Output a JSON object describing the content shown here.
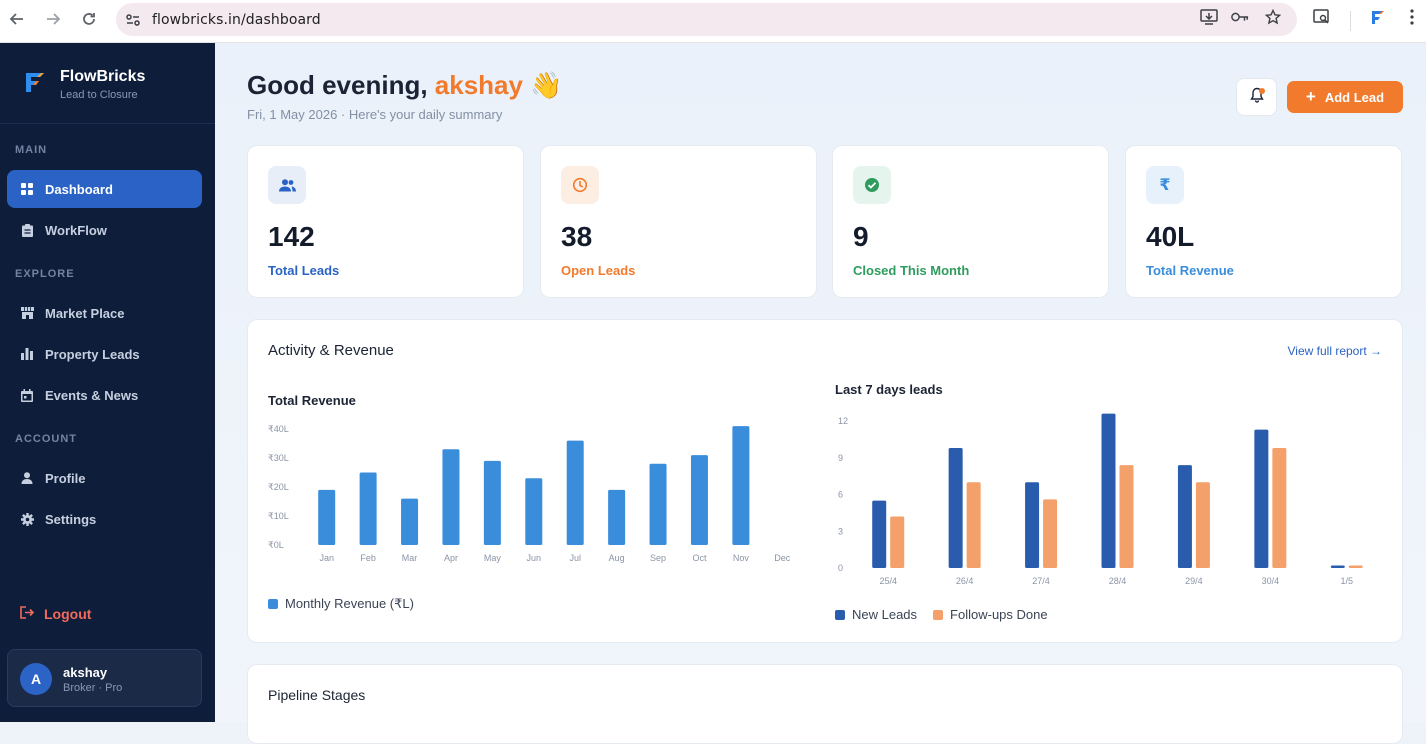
{
  "browser": {
    "url": "flowbricks.in/dashboard"
  },
  "sidebar": {
    "brand_name": "FlowBricks",
    "brand_tagline": "Lead to Closure",
    "sections": {
      "main": "MAIN",
      "explore": "EXPLORE",
      "account": "ACCOUNT"
    },
    "items": {
      "dashboard": "Dashboard",
      "workflow": "WorkFlow",
      "marketplace": "Market Place",
      "property_leads": "Property Leads",
      "events_news": "Events & News",
      "profile": "Profile",
      "settings": "Settings"
    },
    "logout": "Logout",
    "user": {
      "initial": "A",
      "name": "akshay",
      "role": "Broker · Pro"
    }
  },
  "header": {
    "greeting": "Good evening, ",
    "user_name": "akshay",
    "wave": "👋",
    "subtitle": "Fri, 1 May 2026 · Here's your daily summary",
    "add_lead": "Add Lead"
  },
  "stats": [
    {
      "value": "142",
      "label": "Total Leads",
      "color": "#2a63c5",
      "bg": "#e8eef8",
      "icon": "users-icon"
    },
    {
      "value": "38",
      "label": "Open Leads",
      "color": "#f27a2c",
      "bg": "#fdeee4",
      "icon": "clock-icon"
    },
    {
      "value": "9",
      "label": "Closed This Month",
      "color": "#2e9c5e",
      "bg": "#e5f4ec",
      "icon": "check-circle-icon"
    },
    {
      "value": "40L",
      "label": "Total Revenue",
      "color": "#3a8ddb",
      "bg": "#e6f1fb",
      "icon": "rupee-icon"
    }
  ],
  "activity": {
    "title": "Activity & Revenue",
    "view_link": "View full report →"
  },
  "chart_data": [
    {
      "type": "bar",
      "title": "Total Revenue",
      "categories": [
        "Jan",
        "Feb",
        "Mar",
        "Apr",
        "May",
        "Jun",
        "Jul",
        "Aug",
        "Sep",
        "Oct",
        "Nov",
        "Dec"
      ],
      "series": [
        {
          "name": "Monthly Revenue (₹L)",
          "color": "#3a8ddb",
          "values": [
            19,
            25,
            16,
            33,
            29,
            23,
            36,
            19,
            28,
            31,
            41,
            0
          ]
        }
      ],
      "yticks": [
        "₹0L",
        "₹10L",
        "₹20L",
        "₹30L",
        "₹40L"
      ],
      "ylim": [
        0,
        40
      ]
    },
    {
      "type": "bar",
      "title": "Last 7 days leads",
      "categories": [
        "25/4",
        "26/4",
        "27/4",
        "28/4",
        "29/4",
        "30/4",
        "1/5"
      ],
      "series": [
        {
          "name": "New Leads",
          "color": "#2a5cae",
          "values": [
            5.5,
            9.8,
            7,
            12.6,
            8.4,
            11.3,
            0.2
          ]
        },
        {
          "name": "Follow-ups Done",
          "color": "#f3a06a",
          "values": [
            4.2,
            7,
            5.6,
            8.4,
            7,
            9.8,
            0.2
          ]
        }
      ],
      "yticks": [
        "0",
        "3",
        "6",
        "9",
        "12"
      ],
      "ylim": [
        0,
        12
      ]
    }
  ],
  "pipeline": {
    "title": "Pipeline Stages"
  }
}
